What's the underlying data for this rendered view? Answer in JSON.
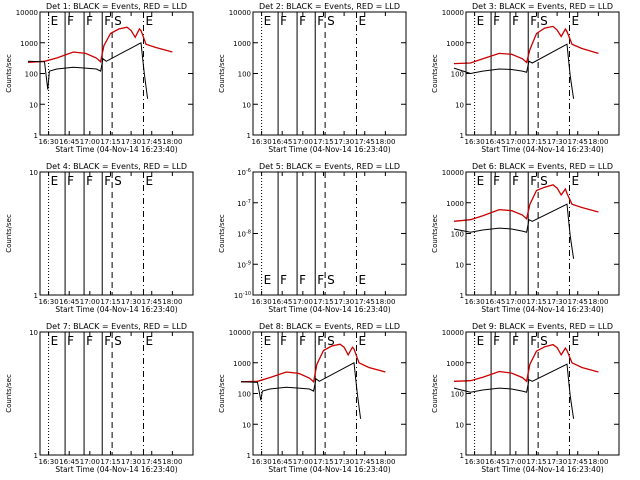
{
  "chart_data": {
    "type": "line",
    "colors": {
      "events": "#000000",
      "lld": "#cc0000",
      "axis": "#000000"
    },
    "x_ticks": [
      "16:30",
      "16:45",
      "17:00",
      "17:15",
      "17:30",
      "17:45",
      "18:00"
    ],
    "x_label": "Start Time (04-Nov-14 16:23:40)",
    "y_label": "Counts/sec",
    "event_markers": [
      {
        "letter": "E",
        "time": 16.5,
        "style": "dotted"
      },
      {
        "letter": "F",
        "time": 16.7,
        "style": "solid"
      },
      {
        "letter": "F",
        "time": 16.93,
        "style": "solid"
      },
      {
        "letter": "F",
        "time": 17.15,
        "style": "solid"
      },
      {
        "letter": "S",
        "time": 17.27,
        "style": "dashed"
      },
      {
        "letter": "E",
        "time": 17.65,
        "style": "dashdot"
      }
    ],
    "panels": [
      {
        "title": "Det 1: BLACK = Events, RED = LLD",
        "y_log_range": [
          0,
          4
        ],
        "y_ticks": [
          "1",
          "10",
          "100",
          "1000",
          "10000"
        ],
        "has_data": true,
        "marker_pos": "top",
        "lld": {
          "t": [
            16.25,
            16.45,
            16.6,
            16.8,
            16.95,
            17.08,
            17.13,
            17.17,
            17.25,
            17.35,
            17.45,
            17.5,
            17.55,
            17.6,
            17.62,
            17.68,
            17.8,
            18.0
          ],
          "v": [
            230,
            250,
            320,
            500,
            450,
            320,
            240,
            800,
            2000,
            2800,
            3200,
            2500,
            1500,
            2800,
            2500,
            900,
            700,
            500
          ]
        },
        "events": {
          "t": [
            16.25,
            16.45,
            16.49,
            16.51,
            16.6,
            16.8,
            16.95,
            17.08,
            17.13,
            17.16,
            17.2,
            17.62,
            17.64,
            17.66,
            17.7
          ],
          "v": [
            250,
            240,
            30,
            120,
            140,
            160,
            150,
            140,
            120,
            300,
            250,
            1000,
            300,
            100,
            15
          ]
        }
      },
      {
        "title": "Det 2: BLACK = Events, RED = LLD",
        "y_log_range": [
          0,
          4
        ],
        "y_ticks": [
          "1",
          "10",
          "100",
          "1000",
          "10000"
        ],
        "has_data": false,
        "marker_pos": "top"
      },
      {
        "title": "Det 3: BLACK = Events, RED = LLD",
        "y_log_range": [
          0,
          4
        ],
        "y_ticks": [
          "1",
          "10",
          "100",
          "1000",
          "10000"
        ],
        "has_data": true,
        "marker_pos": "top",
        "lld": {
          "t": [
            16.25,
            16.45,
            16.6,
            16.8,
            16.95,
            17.08,
            17.13,
            17.17,
            17.25,
            17.35,
            17.45,
            17.5,
            17.55,
            17.6,
            17.62,
            17.68,
            17.8,
            18.0
          ],
          "v": [
            210,
            220,
            300,
            450,
            420,
            300,
            230,
            600,
            2000,
            3000,
            3400,
            2600,
            1600,
            2800,
            2300,
            900,
            650,
            450
          ]
        },
        "events": {
          "t": [
            16.25,
            16.45,
            16.6,
            16.8,
            16.95,
            17.08,
            17.13,
            17.16,
            17.2,
            17.62,
            17.64,
            17.66,
            17.7
          ],
          "v": [
            150,
            100,
            120,
            140,
            135,
            120,
            110,
            250,
            220,
            900,
            250,
            80,
            15
          ]
        }
      },
      {
        "title": "Det 4: BLACK = Events, RED = LLD",
        "y_log_range": [
          0,
          1
        ],
        "y_ticks": [
          "1",
          "10"
        ],
        "has_data": false,
        "marker_pos": "top"
      },
      {
        "title": "Det 5: BLACK = Events, RED = LLD",
        "y_log_range": [
          -10,
          -6
        ],
        "y_ticks": [
          "10^-10",
          "10^-9",
          "10^-8",
          "10^-7",
          "10^-6"
        ],
        "has_data": false,
        "marker_pos": "bottom"
      },
      {
        "title": "Det 6: BLACK = Events, RED = LLD",
        "y_log_range": [
          0,
          4
        ],
        "y_ticks": [
          "1",
          "10",
          "100",
          "1000",
          "10000"
        ],
        "has_data": true,
        "marker_pos": "top",
        "lld": {
          "t": [
            16.25,
            16.45,
            16.6,
            16.8,
            16.95,
            17.08,
            17.13,
            17.17,
            17.25,
            17.35,
            17.45,
            17.5,
            17.55,
            17.6,
            17.62,
            17.68,
            17.8,
            18.0
          ],
          "v": [
            250,
            280,
            380,
            600,
            550,
            400,
            300,
            900,
            2500,
            3200,
            3800,
            3000,
            1800,
            2800,
            2000,
            900,
            700,
            500
          ]
        },
        "events": {
          "t": [
            16.25,
            16.45,
            16.6,
            16.8,
            16.95,
            17.08,
            17.13,
            17.16,
            17.2,
            17.62,
            17.64,
            17.66,
            17.7
          ],
          "v": [
            140,
            110,
            130,
            150,
            140,
            120,
            110,
            280,
            250,
            900,
            250,
            80,
            15
          ]
        }
      },
      {
        "title": "Det 7: BLACK = Events, RED = LLD",
        "y_log_range": [
          0,
          1
        ],
        "y_ticks": [
          "1",
          "10"
        ],
        "has_data": false,
        "marker_pos": "top"
      },
      {
        "title": "Det 8: BLACK = Events, RED = LLD",
        "y_log_range": [
          0,
          4
        ],
        "y_ticks": [
          "1",
          "10",
          "100",
          "1000",
          "10000"
        ],
        "has_data": true,
        "marker_pos": "top",
        "lld": {
          "t": [
            16.25,
            16.45,
            16.6,
            16.8,
            16.95,
            17.08,
            17.13,
            17.17,
            17.25,
            17.35,
            17.45,
            17.5,
            17.55,
            17.6,
            17.62,
            17.68,
            17.8,
            18.0
          ],
          "v": [
            240,
            250,
            330,
            500,
            450,
            320,
            240,
            900,
            2500,
            3500,
            4000,
            3200,
            1800,
            3200,
            2800,
            1000,
            700,
            500
          ]
        },
        "events": {
          "t": [
            16.25,
            16.45,
            16.49,
            16.51,
            16.6,
            16.8,
            16.95,
            17.08,
            17.13,
            17.16,
            17.2,
            17.62,
            17.64,
            17.66,
            17.7
          ],
          "v": [
            240,
            230,
            60,
            120,
            140,
            160,
            150,
            140,
            120,
            300,
            250,
            1000,
            300,
            100,
            15
          ]
        }
      },
      {
        "title": "Det 9: BLACK = Events, RED = LLD",
        "y_log_range": [
          0,
          4
        ],
        "y_ticks": [
          "1",
          "10",
          "100",
          "1000",
          "10000"
        ],
        "has_data": true,
        "marker_pos": "top",
        "lld": {
          "t": [
            16.25,
            16.45,
            16.6,
            16.8,
            16.95,
            17.08,
            17.13,
            17.17,
            17.25,
            17.35,
            17.45,
            17.5,
            17.55,
            17.6,
            17.62,
            17.68,
            17.8,
            18.0
          ],
          "v": [
            250,
            260,
            340,
            520,
            460,
            330,
            250,
            900,
            2400,
            3300,
            3900,
            3100,
            1800,
            3000,
            2500,
            1000,
            700,
            500
          ]
        },
        "events": {
          "t": [
            16.25,
            16.45,
            16.6,
            16.8,
            16.95,
            17.08,
            17.13,
            17.16,
            17.2,
            17.62,
            17.64,
            17.66,
            17.7
          ],
          "v": [
            150,
            110,
            130,
            150,
            140,
            120,
            110,
            280,
            250,
            900,
            250,
            80,
            15
          ]
        }
      }
    ]
  }
}
